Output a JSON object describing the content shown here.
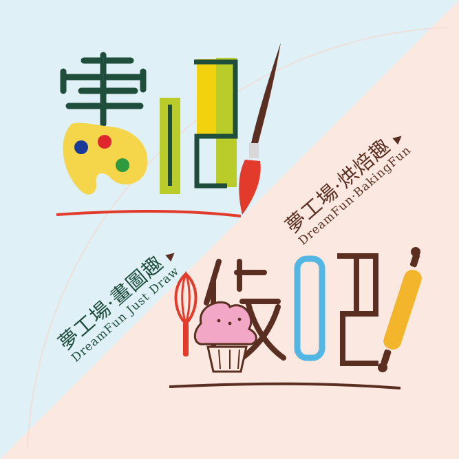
{
  "colors": {
    "bg_top_left": "#dff0f7",
    "bg_bottom_right": "#fbe9e1",
    "dark_green": "#1f4e3d",
    "yellow": "#f2d10f",
    "lime": "#b9cc2a",
    "red": "#e23b2b",
    "brown": "#5a2e20",
    "light_blue": "#54b6e2",
    "pink": "#e98bb3",
    "orange_yellow": "#f2b52b"
  },
  "draw_logo": {
    "char_1": "畫",
    "char_2": "吧",
    "subtitle_cn": "夢工場·畫圖趣",
    "subtitle_en": "DreamFun  Just Draw",
    "arrow": "▶"
  },
  "bake_logo": {
    "char_1": "做",
    "char_2": "吧",
    "subtitle_cn": "夢工場·烘焙趣",
    "subtitle_en": "DreamFun·BakingFun",
    "arrow": "▶"
  },
  "icons": [
    "palette-icon",
    "paintbrush-icon",
    "whisk-icon",
    "cupcake-icon",
    "rolling-pin-icon"
  ]
}
